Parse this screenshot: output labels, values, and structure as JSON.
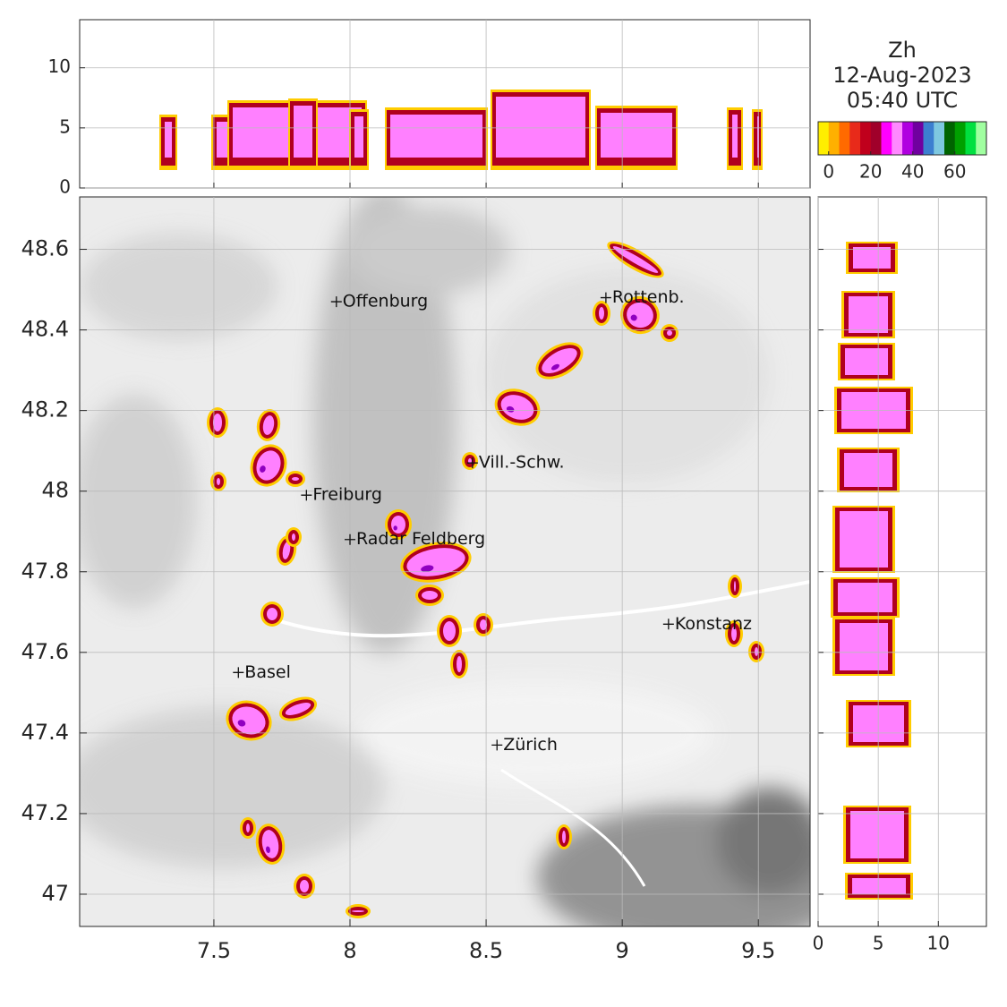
{
  "chart_data": {
    "type": "radar-map",
    "map": {
      "xlim": [
        7.007,
        9.69
      ],
      "ylim": [
        46.92,
        48.73
      ],
      "xticks": [
        7.5,
        8,
        8.5,
        9,
        9.5
      ],
      "yticks": [
        47,
        47.2,
        47.4,
        47.6,
        47.8,
        48,
        48.2,
        48.4,
        48.6
      ],
      "grid": true,
      "cities": [
        {
          "name": "Offenburg",
          "lon": 7.95,
          "lat": 48.47
        },
        {
          "name": "Rottenb.",
          "lon": 8.94,
          "lat": 48.48
        },
        {
          "name": "Vill.-Schw.",
          "lon": 8.45,
          "lat": 48.07
        },
        {
          "name": "Freiburg",
          "lon": 7.84,
          "lat": 47.99
        },
        {
          "name": "Radar Feldberg",
          "lon": 8.0,
          "lat": 47.88
        },
        {
          "name": "Konstanz",
          "lon": 9.17,
          "lat": 47.67
        },
        {
          "name": "Basel",
          "lon": 7.59,
          "lat": 47.55
        },
        {
          "name": "Zürich",
          "lon": 8.54,
          "lat": 47.37
        }
      ]
    },
    "top_panel": {
      "ylim": [
        0,
        14
      ],
      "yticks": [
        0,
        5,
        10
      ]
    },
    "right_panel": {
      "xlim": [
        0,
        14
      ],
      "xticks": [
        0,
        5,
        10
      ]
    },
    "colorbar": {
      "title": [
        "Zh",
        "12-Aug-2023",
        "05:40 UTC"
      ],
      "clim": [
        -5,
        75
      ],
      "ticks": [
        0,
        20,
        40,
        60
      ],
      "colors": [
        "#ffee00",
        "#ffb000",
        "#ff6a00",
        "#e82a1a",
        "#c0001c",
        "#a0002a",
        "#ff00ff",
        "#ff88ff",
        "#b000e0",
        "#7000a0",
        "#3c7fd0",
        "#7ec8e0",
        "#006400",
        "#00a000",
        "#00e040",
        "#a0ffa0"
      ]
    }
  }
}
